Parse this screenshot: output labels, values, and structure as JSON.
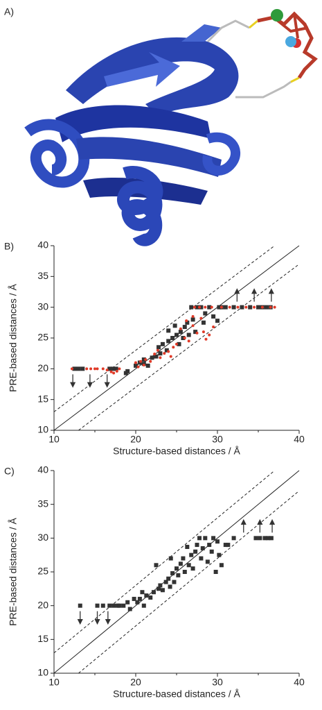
{
  "panel_a": {
    "label": "A)"
  },
  "chart_data": [
    {
      "type": "scatter",
      "panel_label": "B)",
      "xlabel": "Structure-based distances / Å",
      "ylabel": "PRE-based distances / Å",
      "xlim": [
        10,
        40
      ],
      "ylim": [
        10,
        40
      ],
      "xticks": [
        10,
        20,
        30,
        40
      ],
      "xminorticks": [
        15,
        25,
        35
      ],
      "yticks": [
        10,
        15,
        20,
        25,
        30,
        35,
        40
      ],
      "reference_lines": [
        {
          "intercept": 0,
          "style": "solid"
        },
        {
          "intercept": 3,
          "style": "dashed"
        },
        {
          "intercept": -3,
          "style": "dashed"
        }
      ],
      "series": [
        {
          "color": "#333333",
          "marker": "square",
          "x": [
            12.5,
            13,
            13.5,
            16.8,
            17.2,
            17.6,
            18.8,
            19,
            20,
            20.5,
            21,
            21.5,
            22,
            22.5,
            23,
            23.3,
            23.8,
            24,
            24,
            24.5,
            25,
            25.3,
            25.5,
            25.8,
            26,
            26.3,
            26.5,
            26.8,
            27,
            27.3,
            27.5,
            28,
            28.3,
            28.5,
            29,
            29.5,
            30,
            30.2,
            30.5,
            31,
            32,
            33,
            34,
            35,
            35.5,
            36,
            36.5,
            21,
            22.8,
            24.8
          ],
          "y": [
            20,
            20,
            20,
            20,
            20,
            20,
            19.3,
            19.6,
            20.5,
            21,
            21.5,
            20.5,
            21.8,
            22,
            22.5,
            24,
            23,
            24.5,
            26.2,
            25,
            25.5,
            24,
            26,
            25,
            26.8,
            27.5,
            25.5,
            30,
            28,
            26,
            30,
            30,
            27.5,
            29,
            30,
            28.5,
            27.8,
            30,
            30,
            30,
            30,
            30,
            30,
            30,
            30,
            30,
            30,
            20.8,
            23.5,
            27
          ]
        },
        {
          "color": "#e03a28",
          "marker": "dot",
          "x": [
            12.2,
            14,
            14.5,
            15,
            15.3,
            16,
            16.5,
            17,
            17.3,
            17.7,
            18,
            20,
            20.3,
            20.6,
            21,
            21.2,
            21.8,
            22.3,
            22.7,
            23,
            23.5,
            24,
            24.3,
            24.6,
            25,
            25.5,
            26,
            26.5,
            27,
            27.5,
            28,
            28.3,
            28.6,
            29,
            29.5,
            27.2,
            27.8,
            28.5,
            29.3,
            30.5,
            31.5,
            32.5,
            33.5,
            34.5,
            35.5,
            36.5,
            37,
            27,
            26.2
          ],
          "y": [
            20,
            20,
            20,
            20,
            20,
            20,
            19.8,
            19.5,
            19.3,
            19.6,
            20,
            21,
            20.3,
            21.2,
            20.6,
            21.5,
            21.2,
            22.4,
            23,
            21.8,
            22.5,
            22.8,
            22,
            23.5,
            24,
            26.5,
            25,
            24.5,
            27,
            25.8,
            28.2,
            26,
            24.8,
            25.5,
            26.8,
            30,
            30,
            30,
            30,
            30,
            30,
            30,
            30,
            30,
            30,
            30,
            30,
            28.5,
            27.8
          ]
        }
      ],
      "arrows": [
        {
          "x": 12.3,
          "y": 20,
          "direction": "down"
        },
        {
          "x": 14.4,
          "y": 20,
          "direction": "down"
        },
        {
          "x": 16.5,
          "y": 20,
          "direction": "down"
        },
        {
          "x": 32.4,
          "y": 30,
          "direction": "up"
        },
        {
          "x": 34.5,
          "y": 30,
          "direction": "up"
        },
        {
          "x": 36.6,
          "y": 30,
          "direction": "up"
        }
      ]
    },
    {
      "type": "scatter",
      "panel_label": "C)",
      "xlabel": "Structure-based distances / Å",
      "ylabel": "PRE-based distances / Å",
      "xlim": [
        10,
        40
      ],
      "ylim": [
        10,
        40
      ],
      "xticks": [
        10,
        20,
        30,
        40
      ],
      "xminorticks": [
        15,
        25,
        35
      ],
      "yticks": [
        10,
        15,
        20,
        25,
        30,
        35,
        40
      ],
      "reference_lines": [
        {
          "intercept": 0,
          "style": "solid"
        },
        {
          "intercept": 3,
          "style": "dashed"
        },
        {
          "intercept": -3,
          "style": "dashed"
        }
      ],
      "series": [
        {
          "color": "#333333",
          "marker": "square",
          "x": [
            13.2,
            15.3,
            16,
            16.8,
            17.3,
            17.8,
            18,
            18.5,
            19,
            19.3,
            19.8,
            20.2,
            20.5,
            21,
            21.3,
            21.8,
            22.2,
            22.5,
            22.8,
            23,
            23.3,
            23.7,
            24,
            24.2,
            24.5,
            24.7,
            25,
            25.2,
            25.5,
            25.8,
            26,
            26.3,
            26.5,
            26.8,
            27,
            27.3,
            27.5,
            27.8,
            28,
            28.2,
            28.5,
            28.8,
            29,
            29.3,
            29.5,
            29.8,
            30,
            30.2,
            30.5,
            31,
            31.3,
            32,
            34.7,
            35.2,
            35.8,
            36.2,
            36.6,
            20.8,
            24.3
          ],
          "y": [
            20,
            20,
            20,
            20,
            20,
            20,
            20,
            20,
            20.5,
            19.5,
            21,
            20.5,
            21,
            20,
            21.5,
            21.2,
            22,
            26,
            22.5,
            23,
            22.3,
            23.5,
            24,
            22.8,
            24.8,
            23.5,
            25.5,
            24.5,
            26.2,
            27,
            25,
            28.7,
            26,
            27.5,
            25.5,
            28,
            29,
            30,
            27,
            28.5,
            30,
            26.5,
            29,
            28,
            30,
            25,
            29.5,
            27.5,
            26,
            29,
            29,
            30,
            30,
            30,
            30,
            30,
            30,
            22,
            27
          ]
        }
      ],
      "arrows": [
        {
          "x": 13.2,
          "y": 20,
          "direction": "down"
        },
        {
          "x": 15.3,
          "y": 20,
          "direction": "down"
        },
        {
          "x": 16.6,
          "y": 20,
          "direction": "down"
        },
        {
          "x": 33.2,
          "y": 30,
          "direction": "up"
        },
        {
          "x": 35.2,
          "y": 30,
          "direction": "up"
        },
        {
          "x": 36.7,
          "y": 30,
          "direction": "up"
        }
      ]
    }
  ]
}
